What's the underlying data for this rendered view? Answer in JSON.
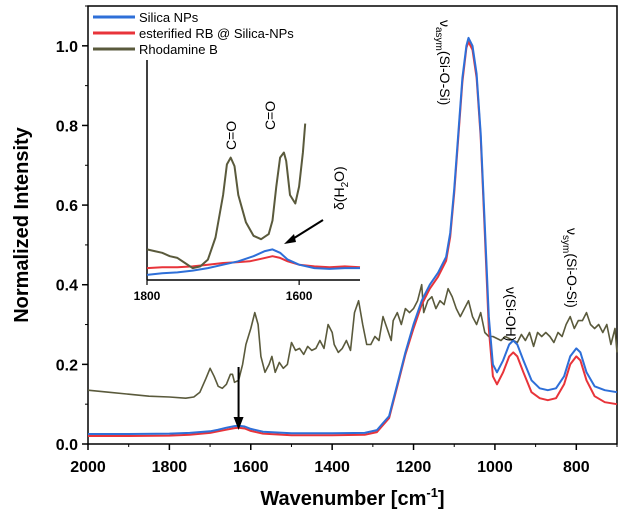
{
  "chart_data": {
    "type": "line",
    "xlabel": "Wavenumber [cm",
    "xlabel_sup": "-1",
    "xlabel_tail": "]",
    "ylabel": "Normalized Intensity",
    "xlim": [
      2000,
      700
    ],
    "ylim": [
      0,
      1.1
    ],
    "x_reversed": true,
    "xticks": [
      2000,
      1800,
      1600,
      1400,
      1200,
      1000,
      800
    ],
    "yticks": [
      0.0,
      0.2,
      0.4,
      0.6,
      0.8,
      1.0
    ],
    "ytick_labels": [
      "0.0",
      "0.2",
      "0.4",
      "0.6",
      "0.8",
      "1.0"
    ],
    "grid": false,
    "legend_position": "top-left",
    "series": [
      {
        "name": "Silica NPs",
        "color": "#2e6fd8",
        "points": [
          [
            2000,
            0.025
          ],
          [
            1900,
            0.025
          ],
          [
            1800,
            0.026
          ],
          [
            1750,
            0.028
          ],
          [
            1700,
            0.032
          ],
          [
            1680,
            0.036
          ],
          [
            1660,
            0.041
          ],
          [
            1640,
            0.045
          ],
          [
            1630,
            0.046
          ],
          [
            1615,
            0.044
          ],
          [
            1600,
            0.038
          ],
          [
            1570,
            0.031
          ],
          [
            1500,
            0.027
          ],
          [
            1400,
            0.027
          ],
          [
            1320,
            0.028
          ],
          [
            1290,
            0.035
          ],
          [
            1260,
            0.07
          ],
          [
            1240,
            0.15
          ],
          [
            1220,
            0.23
          ],
          [
            1200,
            0.3
          ],
          [
            1180,
            0.36
          ],
          [
            1160,
            0.4
          ],
          [
            1140,
            0.43
          ],
          [
            1120,
            0.47
          ],
          [
            1110,
            0.53
          ],
          [
            1100,
            0.64
          ],
          [
            1090,
            0.78
          ],
          [
            1080,
            0.92
          ],
          [
            1070,
            1.0
          ],
          [
            1065,
            1.02
          ],
          [
            1055,
            1.0
          ],
          [
            1045,
            0.93
          ],
          [
            1035,
            0.78
          ],
          [
            1025,
            0.55
          ],
          [
            1015,
            0.32
          ],
          [
            1005,
            0.2
          ],
          [
            995,
            0.18
          ],
          [
            980,
            0.21
          ],
          [
            965,
            0.25
          ],
          [
            955,
            0.26
          ],
          [
            945,
            0.25
          ],
          [
            930,
            0.21
          ],
          [
            910,
            0.16
          ],
          [
            890,
            0.14
          ],
          [
            870,
            0.135
          ],
          [
            850,
            0.14
          ],
          [
            830,
            0.17
          ],
          [
            815,
            0.22
          ],
          [
            800,
            0.24
          ],
          [
            790,
            0.23
          ],
          [
            775,
            0.18
          ],
          [
            755,
            0.145
          ],
          [
            730,
            0.135
          ],
          [
            700,
            0.13
          ]
        ]
      },
      {
        "name": "esterified RB @ Silica-NPs",
        "color": "#e8343a",
        "points": [
          [
            2000,
            0.02
          ],
          [
            1900,
            0.02
          ],
          [
            1800,
            0.021
          ],
          [
            1750,
            0.023
          ],
          [
            1700,
            0.028
          ],
          [
            1680,
            0.032
          ],
          [
            1660,
            0.036
          ],
          [
            1640,
            0.04
          ],
          [
            1630,
            0.041
          ],
          [
            1615,
            0.039
          ],
          [
            1600,
            0.033
          ],
          [
            1570,
            0.026
          ],
          [
            1500,
            0.022
          ],
          [
            1400,
            0.022
          ],
          [
            1320,
            0.023
          ],
          [
            1290,
            0.03
          ],
          [
            1260,
            0.065
          ],
          [
            1240,
            0.145
          ],
          [
            1220,
            0.225
          ],
          [
            1200,
            0.29
          ],
          [
            1180,
            0.35
          ],
          [
            1160,
            0.39
          ],
          [
            1140,
            0.42
          ],
          [
            1120,
            0.46
          ],
          [
            1110,
            0.52
          ],
          [
            1100,
            0.63
          ],
          [
            1090,
            0.77
          ],
          [
            1080,
            0.91
          ],
          [
            1070,
            0.995
          ],
          [
            1065,
            1.01
          ],
          [
            1055,
            0.99
          ],
          [
            1045,
            0.92
          ],
          [
            1035,
            0.77
          ],
          [
            1025,
            0.53
          ],
          [
            1015,
            0.29
          ],
          [
            1005,
            0.17
          ],
          [
            995,
            0.15
          ],
          [
            980,
            0.18
          ],
          [
            965,
            0.22
          ],
          [
            955,
            0.23
          ],
          [
            945,
            0.22
          ],
          [
            930,
            0.18
          ],
          [
            910,
            0.13
          ],
          [
            890,
            0.115
          ],
          [
            870,
            0.11
          ],
          [
            850,
            0.115
          ],
          [
            830,
            0.15
          ],
          [
            815,
            0.2
          ],
          [
            800,
            0.22
          ],
          [
            790,
            0.21
          ],
          [
            775,
            0.16
          ],
          [
            755,
            0.12
          ],
          [
            730,
            0.105
          ],
          [
            700,
            0.1
          ]
        ]
      },
      {
        "name": "Rhodamine B",
        "color": "#5a5a3c",
        "points": [
          [
            2000,
            0.135
          ],
          [
            1950,
            0.13
          ],
          [
            1900,
            0.125
          ],
          [
            1850,
            0.12
          ],
          [
            1800,
            0.118
          ],
          [
            1760,
            0.115
          ],
          [
            1740,
            0.118
          ],
          [
            1725,
            0.13
          ],
          [
            1710,
            0.165
          ],
          [
            1700,
            0.19
          ],
          [
            1690,
            0.17
          ],
          [
            1680,
            0.145
          ],
          [
            1670,
            0.14
          ],
          [
            1660,
            0.15
          ],
          [
            1650,
            0.175
          ],
          [
            1645,
            0.175
          ],
          [
            1640,
            0.155
          ],
          [
            1630,
            0.16
          ],
          [
            1620,
            0.2
          ],
          [
            1612,
            0.25
          ],
          [
            1600,
            0.29
          ],
          [
            1590,
            0.33
          ],
          [
            1582,
            0.3
          ],
          [
            1575,
            0.22
          ],
          [
            1565,
            0.18
          ],
          [
            1555,
            0.2
          ],
          [
            1548,
            0.22
          ],
          [
            1540,
            0.18
          ],
          [
            1530,
            0.205
          ],
          [
            1520,
            0.19
          ],
          [
            1510,
            0.2
          ],
          [
            1500,
            0.255
          ],
          [
            1490,
            0.235
          ],
          [
            1480,
            0.24
          ],
          [
            1470,
            0.225
          ],
          [
            1460,
            0.245
          ],
          [
            1450,
            0.235
          ],
          [
            1440,
            0.24
          ],
          [
            1430,
            0.26
          ],
          [
            1420,
            0.24
          ],
          [
            1410,
            0.3
          ],
          [
            1400,
            0.28
          ],
          [
            1395,
            0.25
          ],
          [
            1385,
            0.23
          ],
          [
            1375,
            0.24
          ],
          [
            1365,
            0.26
          ],
          [
            1355,
            0.235
          ],
          [
            1345,
            0.33
          ],
          [
            1335,
            0.36
          ],
          [
            1325,
            0.3
          ],
          [
            1315,
            0.25
          ],
          [
            1305,
            0.25
          ],
          [
            1295,
            0.27
          ],
          [
            1285,
            0.26
          ],
          [
            1275,
            0.32
          ],
          [
            1265,
            0.29
          ],
          [
            1255,
            0.26
          ],
          [
            1250,
            0.31
          ],
          [
            1240,
            0.33
          ],
          [
            1230,
            0.3
          ],
          [
            1220,
            0.34
          ],
          [
            1210,
            0.33
          ],
          [
            1200,
            0.34
          ],
          [
            1190,
            0.36
          ],
          [
            1180,
            0.4
          ],
          [
            1175,
            0.33
          ],
          [
            1165,
            0.36
          ],
          [
            1155,
            0.37
          ],
          [
            1145,
            0.34
          ],
          [
            1135,
            0.36
          ],
          [
            1125,
            0.35
          ],
          [
            1115,
            0.39
          ],
          [
            1105,
            0.37
          ],
          [
            1095,
            0.34
          ],
          [
            1085,
            0.32
          ],
          [
            1075,
            0.34
          ],
          [
            1065,
            0.36
          ],
          [
            1055,
            0.32
          ],
          [
            1045,
            0.3
          ],
          [
            1035,
            0.33
          ],
          [
            1025,
            0.28
          ],
          [
            1015,
            0.27
          ],
          [
            1005,
            0.27
          ],
          [
            995,
            0.265
          ],
          [
            985,
            0.26
          ],
          [
            975,
            0.27
          ],
          [
            965,
            0.265
          ],
          [
            955,
            0.26
          ],
          [
            945,
            0.255
          ],
          [
            935,
            0.275
          ],
          [
            925,
            0.26
          ],
          [
            915,
            0.28
          ],
          [
            905,
            0.245
          ],
          [
            895,
            0.28
          ],
          [
            885,
            0.27
          ],
          [
            875,
            0.28
          ],
          [
            865,
            0.27
          ],
          [
            855,
            0.255
          ],
          [
            845,
            0.28
          ],
          [
            835,
            0.27
          ],
          [
            825,
            0.3
          ],
          [
            815,
            0.32
          ],
          [
            805,
            0.29
          ],
          [
            795,
            0.31
          ],
          [
            785,
            0.31
          ],
          [
            775,
            0.33
          ],
          [
            765,
            0.3
          ],
          [
            755,
            0.29
          ],
          [
            745,
            0.3
          ],
          [
            735,
            0.28
          ],
          [
            725,
            0.3
          ],
          [
            715,
            0.25
          ],
          [
            705,
            0.29
          ],
          [
            700,
            0.23
          ]
        ]
      }
    ],
    "inset": {
      "xlim": [
        1800,
        1520
      ],
      "xticks": [
        1800,
        1600
      ],
      "ylim": [
        0,
        1.0
      ],
      "annotations": [
        "C=O",
        "C=O",
        "δ(H",
        "2",
        "O)"
      ],
      "series": [
        {
          "name": "Rhodamine B",
          "color": "#5a5a3c",
          "points": [
            [
              1800,
              0.18
            ],
            [
              1790,
              0.17
            ],
            [
              1780,
              0.16
            ],
            [
              1770,
              0.14
            ],
            [
              1760,
              0.13
            ],
            [
              1750,
              0.1
            ],
            [
              1740,
              0.07
            ],
            [
              1730,
              0.08
            ],
            [
              1720,
              0.12
            ],
            [
              1710,
              0.25
            ],
            [
              1700,
              0.5
            ],
            [
              1695,
              0.68
            ],
            [
              1690,
              0.72
            ],
            [
              1685,
              0.67
            ],
            [
              1680,
              0.5
            ],
            [
              1670,
              0.34
            ],
            [
              1660,
              0.26
            ],
            [
              1650,
              0.24
            ],
            [
              1640,
              0.27
            ],
            [
              1635,
              0.35
            ],
            [
              1630,
              0.55
            ],
            [
              1625,
              0.72
            ],
            [
              1620,
              0.75
            ],
            [
              1617,
              0.7
            ],
            [
              1612,
              0.5
            ],
            [
              1605,
              0.45
            ],
            [
              1600,
              0.55
            ],
            [
              1595,
              0.75
            ],
            [
              1592,
              0.92
            ]
          ]
        },
        {
          "name": "Silica NPs",
          "color": "#2e6fd8",
          "points": [
            [
              1800,
              0.03
            ],
            [
              1780,
              0.04
            ],
            [
              1760,
              0.045
            ],
            [
              1740,
              0.055
            ],
            [
              1720,
              0.07
            ],
            [
              1700,
              0.09
            ],
            [
              1680,
              0.11
            ],
            [
              1660,
              0.14
            ],
            [
              1645,
              0.17
            ],
            [
              1635,
              0.18
            ],
            [
              1625,
              0.16
            ],
            [
              1615,
              0.12
            ],
            [
              1600,
              0.09
            ],
            [
              1580,
              0.07
            ],
            [
              1560,
              0.065
            ],
            [
              1540,
              0.07
            ],
            [
              1520,
              0.07
            ]
          ]
        },
        {
          "name": "esterified RB @ Silica-NPs",
          "color": "#e8343a",
          "points": [
            [
              1800,
              0.07
            ],
            [
              1780,
              0.075
            ],
            [
              1760,
              0.075
            ],
            [
              1740,
              0.08
            ],
            [
              1720,
              0.09
            ],
            [
              1700,
              0.1
            ],
            [
              1680,
              0.105
            ],
            [
              1665,
              0.11
            ],
            [
              1650,
              0.125
            ],
            [
              1635,
              0.14
            ],
            [
              1625,
              0.13
            ],
            [
              1615,
              0.11
            ],
            [
              1600,
              0.09
            ],
            [
              1580,
              0.08
            ],
            [
              1560,
              0.075
            ],
            [
              1540,
              0.08
            ],
            [
              1520,
              0.075
            ]
          ]
        }
      ]
    },
    "annotations": {
      "vasym_main": "ν",
      "vasym_sub": "asym",
      "vasym_tail": "(Si-O-Si)",
      "vsioh": "ν(Si-OH)",
      "vsym_main": "ν",
      "vsym_sub": "sym",
      "vsym_tail": "(Si-O-Si)"
    }
  }
}
